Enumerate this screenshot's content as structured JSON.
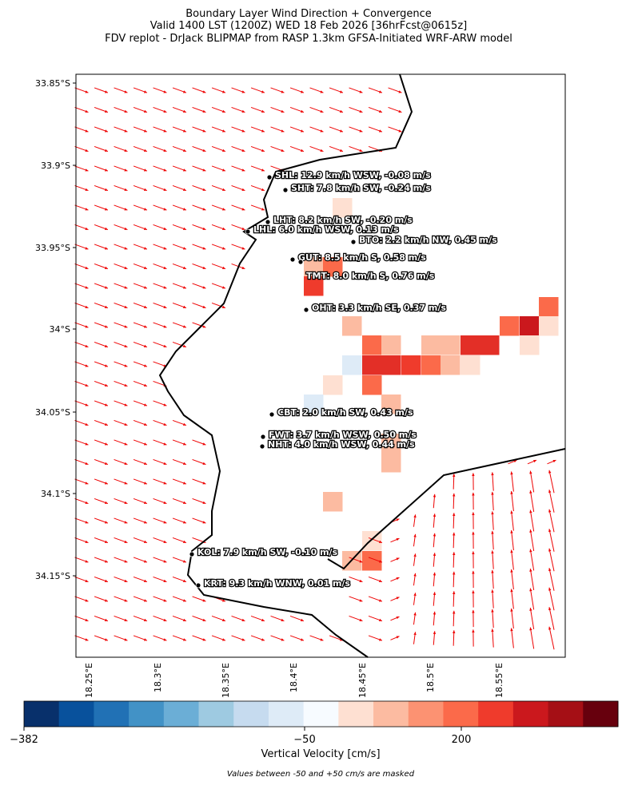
{
  "title": [
    "Boundary Layer Wind Direction + Convergence",
    "Valid 1400 LST (1200Z) WED 18 Feb 2026 [36hrFcst@0615z]",
    "FDV replot - DrJack BLIPMAP from RASP 1.3km GFSA-Initiated WRF-ARW model"
  ],
  "map": {
    "lat_ticks": [
      "33.85°S",
      "33.9°S",
      "33.95°S",
      "34°S",
      "34.05°S",
      "34.1°S",
      "34.15°S"
    ],
    "lon_ticks": [
      "18.25°E",
      "18.3°E",
      "18.35°E",
      "18.4°E",
      "18.45°E",
      "18.5°E",
      "18.55°E"
    ],
    "stations": [
      {
        "label": "SHL: 12.9 km/h WSW, -0.08 m/s"
      },
      {
        "label": "SHT: 7.8 km/h SW, -0.24 m/s"
      },
      {
        "label": "LHT: 8.2 km/h SW, -0.20 m/s"
      },
      {
        "label": "LHL: 6.0 km/h WSW, 0.13 m/s"
      },
      {
        "label": "BTO: 2.2 km/h NW, 0.45 m/s"
      },
      {
        "label": "GUT: 8.5 km/h S, 0.58 m/s"
      },
      {
        "label": "TMT: 8.0 km/h S, 0.76 m/s"
      },
      {
        "label": "OHT: 3.3 km/h SE, 0.37 m/s"
      },
      {
        "label": "CBT: 2.0 km/h SW, 0.43 m/s"
      },
      {
        "label": "FWT: 3.7 km/h WSW, 0.50 m/s"
      },
      {
        "label": "NHT: 4.0 km/h WSW, 0.44 m/s"
      },
      {
        "label": "KOL: 7.9 km/h SW, -0.10 m/s"
      },
      {
        "label": "KRT: 9.3 km/h WNW, 0.01 m/s"
      }
    ]
  },
  "colorbar": {
    "ticks": [
      "−382",
      "−50",
      "200"
    ],
    "label": "Vertical Velocity [cm/s]",
    "note": "Values between -50 and +50 cm/s are masked"
  }
}
